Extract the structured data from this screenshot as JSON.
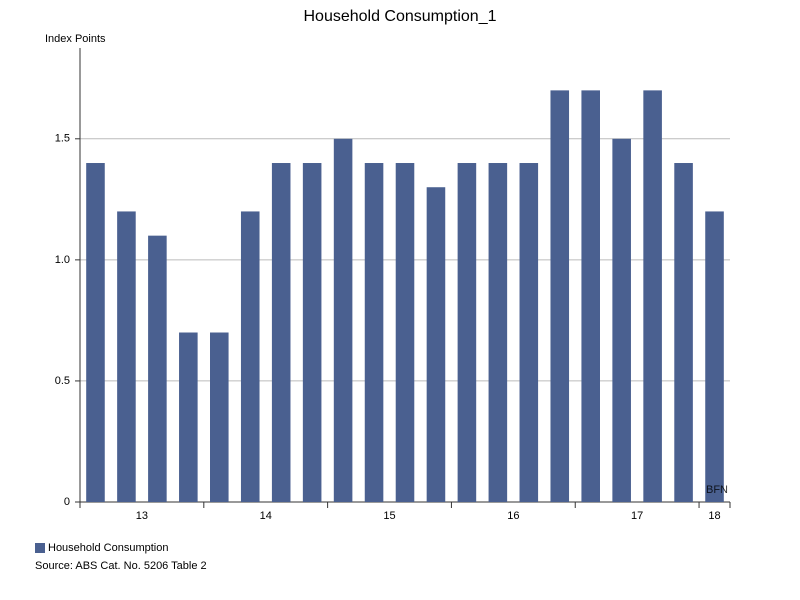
{
  "chart_data": {
    "type": "bar",
    "title": "Household Consumption_1",
    "y_label": "Index Points",
    "categories": [
      "13",
      null,
      null,
      null,
      "14",
      null,
      null,
      null,
      "15",
      null,
      null,
      null,
      "16",
      null,
      null,
      null,
      "17",
      null,
      null,
      null,
      "18"
    ],
    "series": [
      {
        "name": "Household Consumption",
        "color": "#4a6090",
        "values": [
          1.4,
          1.2,
          1.1,
          0.7,
          0.7,
          1.2,
          1.4,
          1.4,
          1.5,
          1.4,
          1.4,
          1.3,
          1.4,
          1.4,
          1.4,
          1.7,
          1.7,
          1.5,
          1.7,
          1.4,
          1.2
        ]
      }
    ],
    "ylim": [
      0,
      1.875
    ],
    "yticks": [
      0,
      0.5,
      {
        "value": 1,
        "label": "1.0"
      },
      1.5
    ],
    "grid": true,
    "legend": "bottom-left",
    "source": "Source: ABS Cat. No. 5206 Table 2",
    "watermark": "BFN"
  }
}
